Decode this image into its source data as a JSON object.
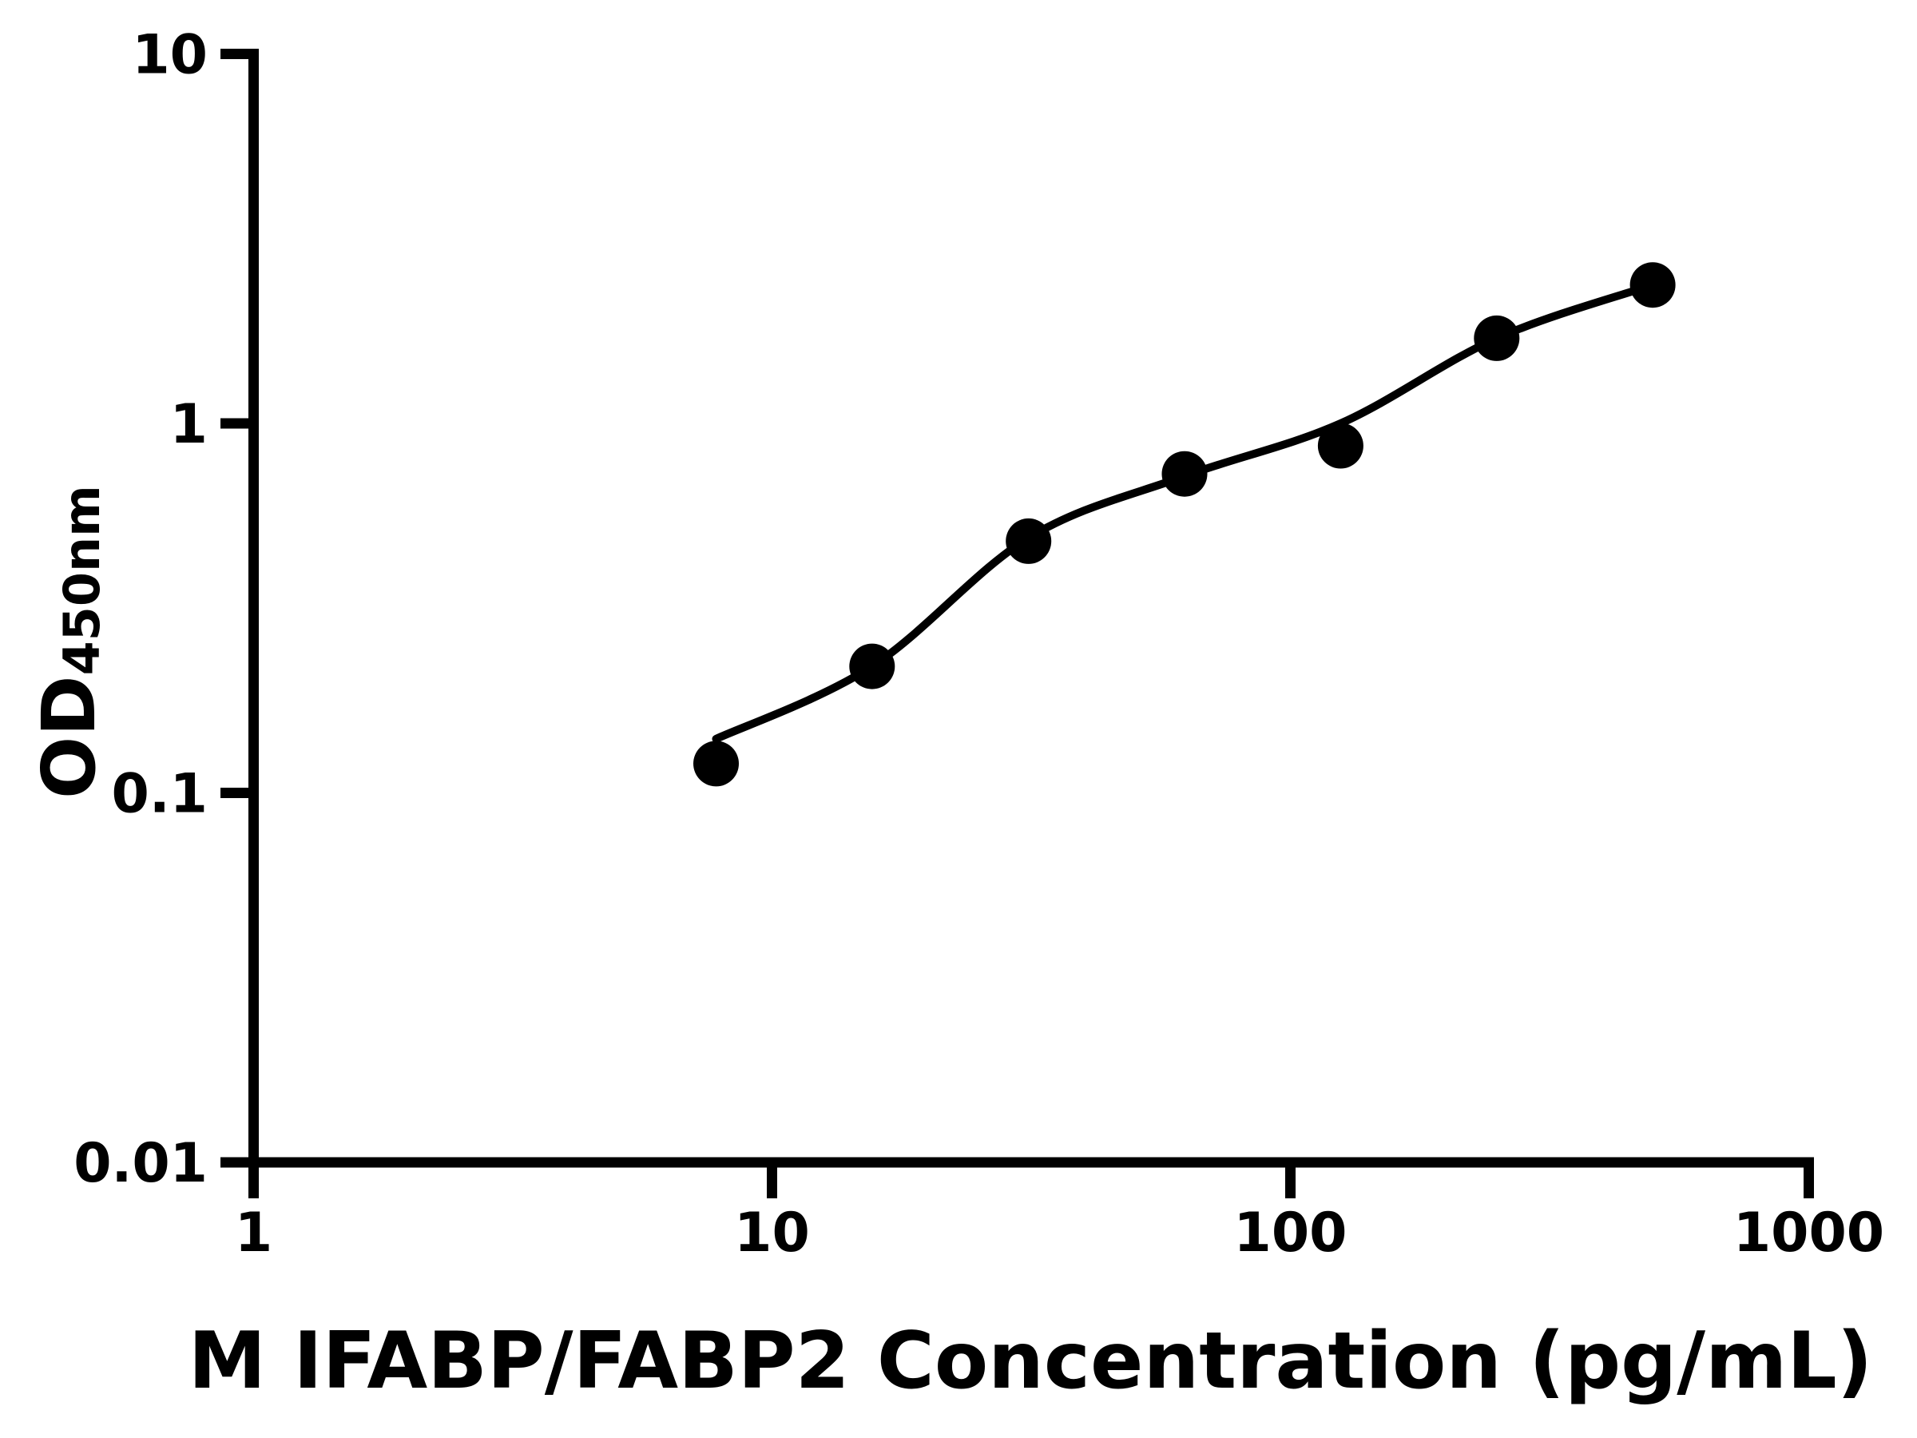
{
  "figure": {
    "background": "#ffffff",
    "ink": "#000000"
  },
  "chart_data": {
    "type": "scatter",
    "title": "",
    "xlabel": "M IFABP/FABP2 Concentration (pg/mL)",
    "ylabel_main": "OD",
    "ylabel_sub": "450nm",
    "x_scale": "log",
    "y_scale": "log",
    "xlim": [
      1,
      1000
    ],
    "ylim": [
      0.01,
      10
    ],
    "grid": false,
    "legend": false,
    "x_ticks": [
      {
        "value": 1,
        "label": "1"
      },
      {
        "value": 10,
        "label": "10"
      },
      {
        "value": 100,
        "label": "100"
      },
      {
        "value": 1000,
        "label": "1000"
      }
    ],
    "y_ticks": [
      {
        "value": 10,
        "label": "10"
      },
      {
        "value": 1,
        "label": "1"
      },
      {
        "value": 0.1,
        "label": "0.1"
      },
      {
        "value": 0.01,
        "label": "0.01"
      }
    ],
    "series": [
      {
        "name": "standard data points",
        "type": "scatter",
        "marker": "filled-circle",
        "color": "#000000",
        "points": [
          {
            "x": 7.8,
            "y": 0.12
          },
          {
            "x": 15.6,
            "y": 0.22
          },
          {
            "x": 31.25,
            "y": 0.48
          },
          {
            "x": 62.5,
            "y": 0.73
          },
          {
            "x": 125,
            "y": 0.87
          },
          {
            "x": 250,
            "y": 1.7
          },
          {
            "x": 500,
            "y": 2.37
          }
        ]
      },
      {
        "name": "fitted standard curve",
        "type": "line",
        "color": "#000000",
        "points": [
          {
            "x": 7.8,
            "y": 0.14
          },
          {
            "x": 15.6,
            "y": 0.22
          },
          {
            "x": 31.25,
            "y": 0.49
          },
          {
            "x": 62.5,
            "y": 0.72
          },
          {
            "x": 125,
            "y": 1.0
          },
          {
            "x": 250,
            "y": 1.7
          },
          {
            "x": 500,
            "y": 2.37
          }
        ]
      }
    ]
  }
}
